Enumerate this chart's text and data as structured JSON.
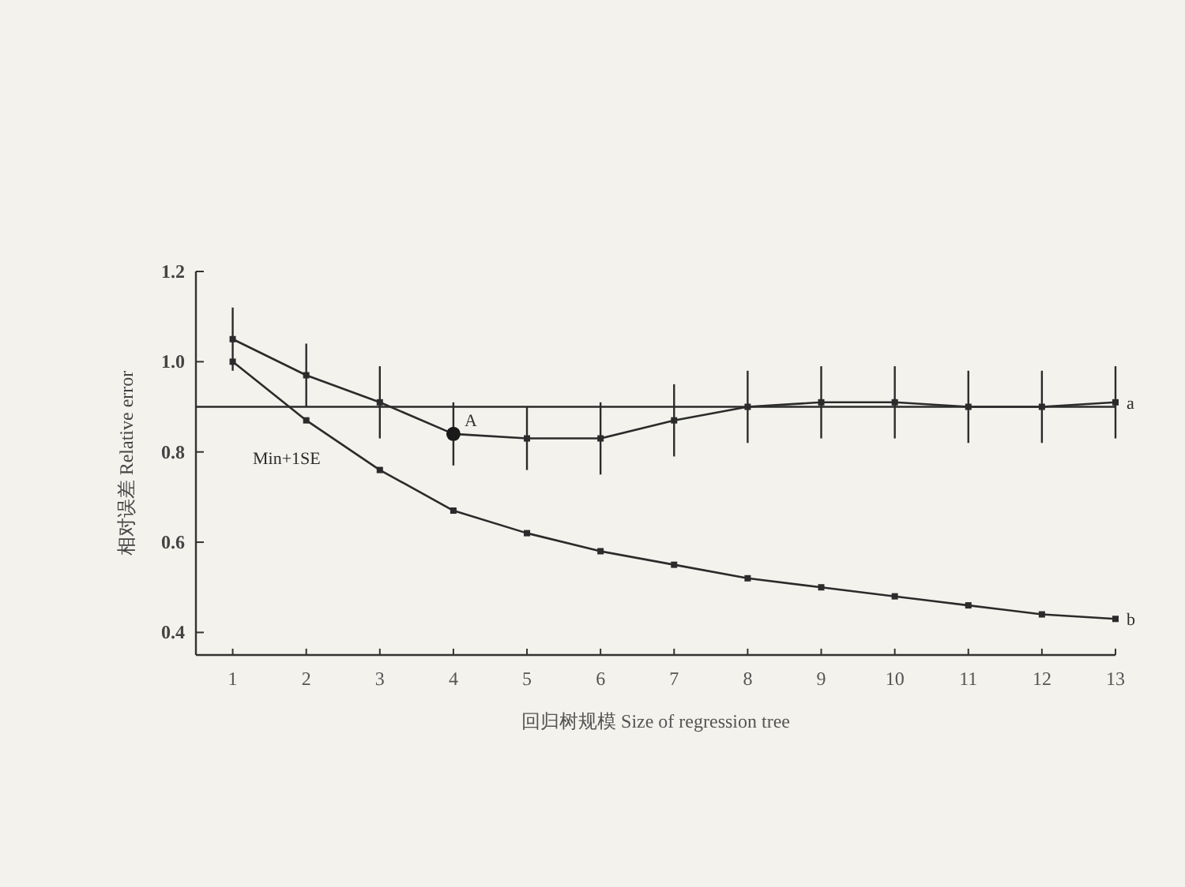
{
  "chart_data": {
    "type": "line",
    "xlabel": "回归树规模 Size of regression tree",
    "ylabel": "相对误差 Relative error",
    "x": [
      1,
      2,
      3,
      4,
      5,
      6,
      7,
      8,
      9,
      10,
      11,
      12,
      13
    ],
    "xlim": [
      0.5,
      13
    ],
    "xticks": [
      1,
      2,
      3,
      4,
      5,
      6,
      7,
      8,
      9,
      10,
      11,
      12,
      13
    ],
    "ylim": [
      0.35,
      1.2
    ],
    "yticks": [
      0.4,
      0.6,
      0.8,
      {
        "value": 1,
        "label": "1.0"
      },
      1.2
    ],
    "marker": "square",
    "line_style": "solid",
    "series": [
      {
        "name": "a",
        "color": "#2b2b2b",
        "values": [
          1.05,
          0.97,
          0.91,
          0.84,
          0.83,
          0.83,
          0.87,
          0.9,
          0.91,
          0.91,
          0.9,
          0.9,
          0.91
        ],
        "errors": [
          0.07,
          0.07,
          0.08,
          0.07,
          0.07,
          0.08,
          0.08,
          0.08,
          0.08,
          0.08,
          0.08,
          0.08,
          0.08
        ]
      },
      {
        "name": "b",
        "color": "#2b2b2b",
        "values": [
          1.0,
          0.87,
          0.76,
          0.67,
          0.62,
          0.58,
          0.55,
          0.52,
          0.5,
          0.48,
          0.46,
          0.44,
          0.43
        ]
      },
      {
        "type": "scatter",
        "marker": "circle",
        "color": "#1a1a1a",
        "x": [
          4
        ],
        "values": [
          0.84
        ]
      }
    ],
    "ref_lines": [
      {
        "axis": "y",
        "value": 0.9,
        "label": "Min+1SE",
        "color": "#2b2b2b"
      }
    ],
    "annotations": [
      {
        "text": "A",
        "x": 4,
        "y": 0.84
      }
    ]
  }
}
